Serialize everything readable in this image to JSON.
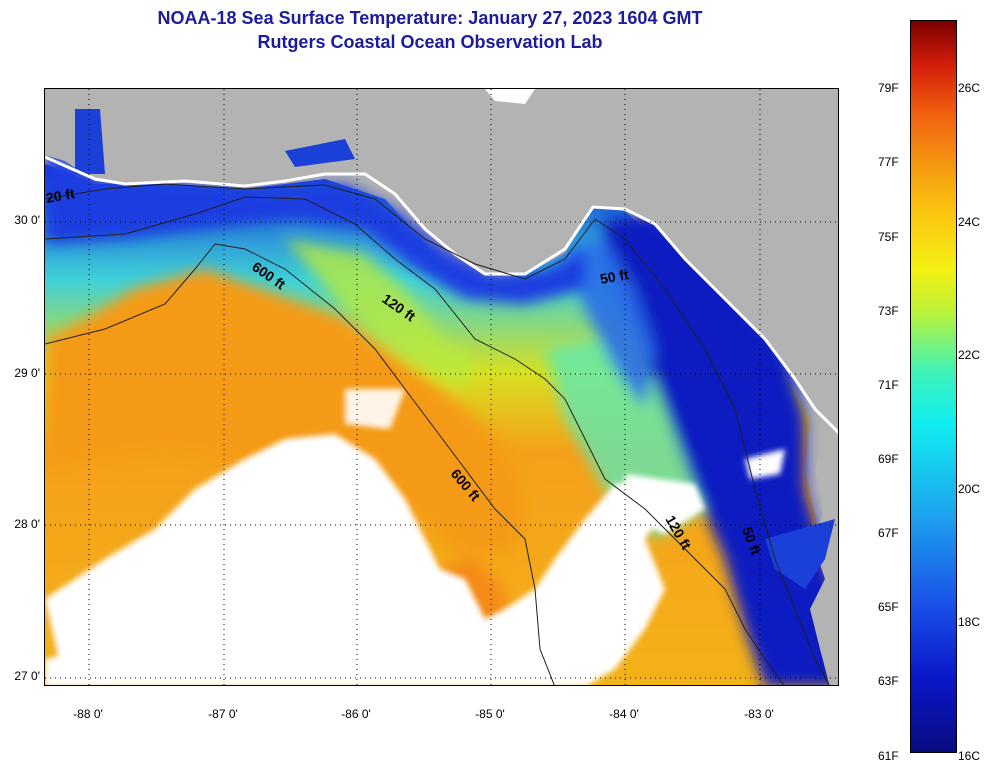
{
  "header": {
    "title": "NOAA-18 Sea Surface Temperature:  January 27, 2023 1604 GMT",
    "subtitle": "Rutgers Coastal Ocean Observation Lab"
  },
  "axes": {
    "latitude_labels": [
      "30 0'",
      "29 0'",
      "28 0'",
      "27 0'"
    ],
    "longitude_labels": [
      "-88 0'",
      "-87 0'",
      "-86 0'",
      "-85 0'",
      "-84 0'",
      "-83 0'"
    ]
  },
  "contours": {
    "labels": [
      "20 ft",
      "600 ft",
      "120 ft",
      "50 ft",
      "600 ft",
      "120 ft",
      "50 ft"
    ]
  },
  "colorbar": {
    "fahrenheit": [
      "79F",
      "77F",
      "75F",
      "73F",
      "71F",
      "69F",
      "67F",
      "65F",
      "63F",
      "61F"
    ],
    "celsius": [
      "26C",
      "24C",
      "22C",
      "20C",
      "18C",
      "16C"
    ]
  },
  "colors": {
    "land": "#b3b3b3",
    "cloud": "#ffffff",
    "title": "#1c1c9c",
    "cold": "#0a12b0",
    "warm": "#f5a01a"
  }
}
